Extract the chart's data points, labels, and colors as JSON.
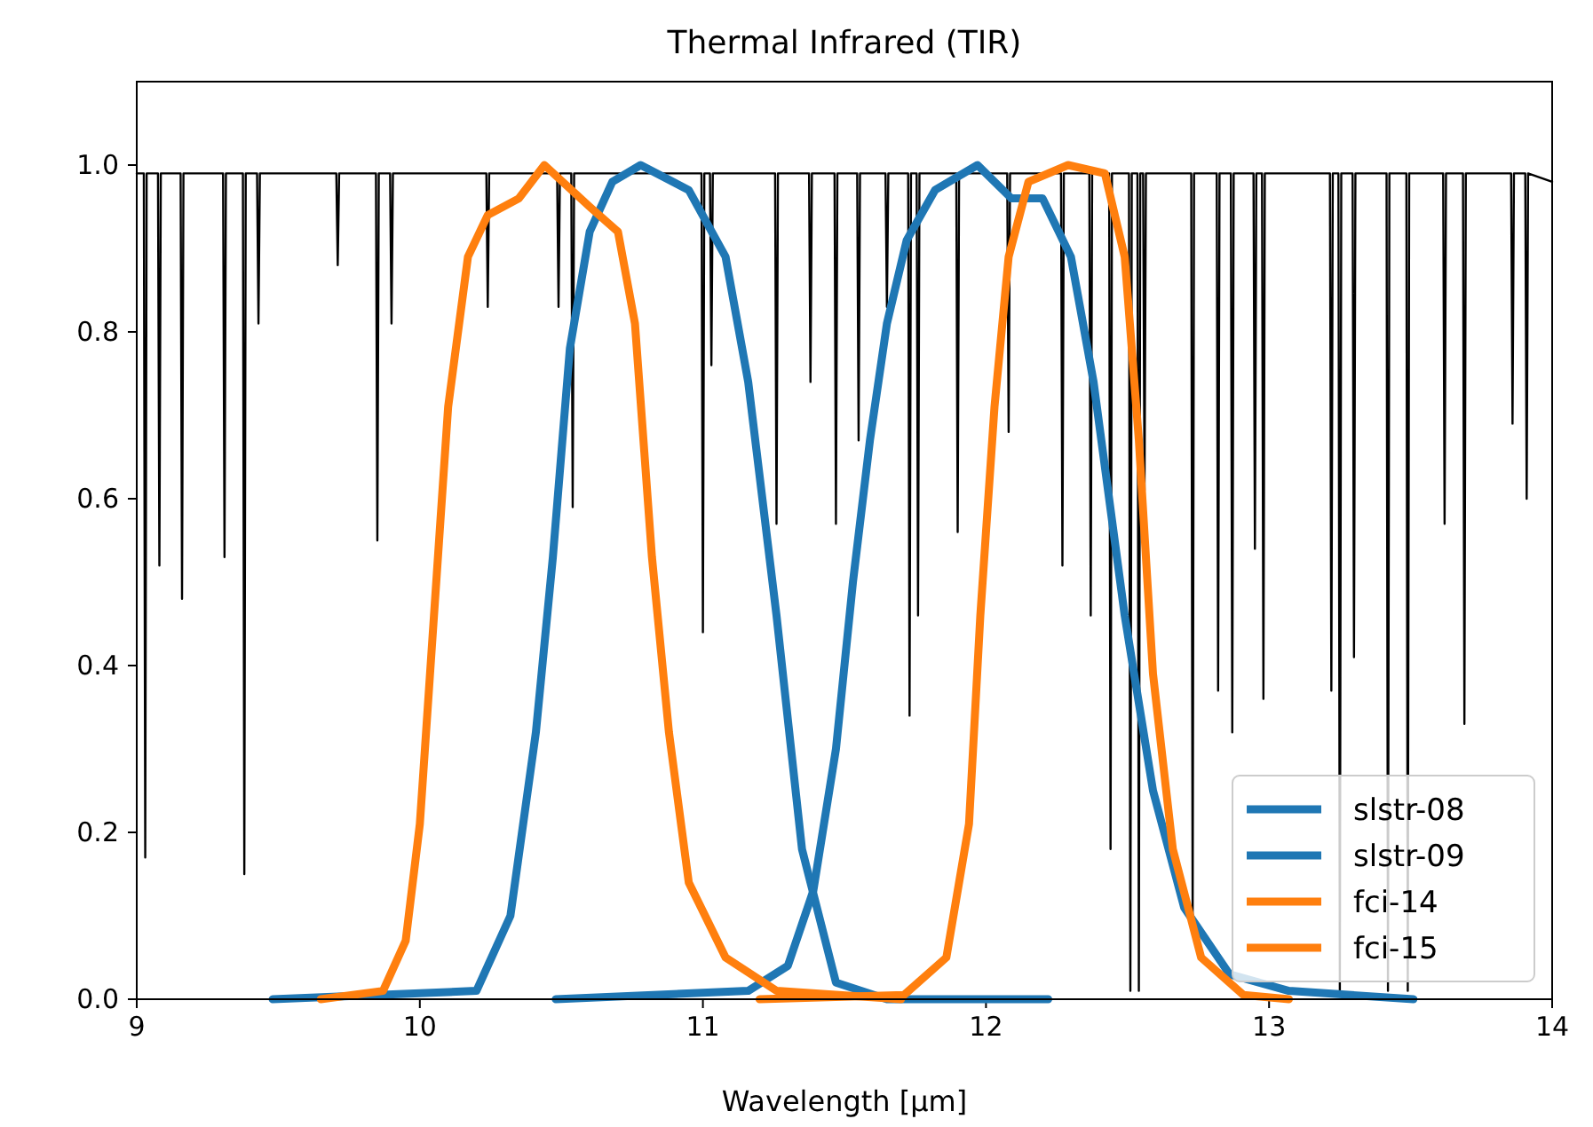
{
  "chart_data": {
    "type": "line",
    "title": "Thermal Infrared (TIR)",
    "xlabel": "Wavelength [µm]",
    "xlim": [
      9,
      14
    ],
    "xticks": [
      9,
      10,
      11,
      12,
      13,
      14
    ],
    "ylim": [
      0,
      1.1
    ],
    "yticks": [
      {
        "value": 0,
        "label": "0.0"
      },
      {
        "value": 0.2,
        "label": "0.2"
      },
      {
        "value": 0.4,
        "label": "0.4"
      },
      {
        "value": 0.6,
        "label": "0.6"
      },
      {
        "value": 0.8,
        "label": "0.8"
      },
      {
        "value": 1.0,
        "label": "1.0"
      }
    ],
    "grid": false,
    "legend": "bottom right",
    "marker": "none",
    "line_style": "solid",
    "series": [
      {
        "color": "#000000",
        "x": [
          9.0,
          9.025,
          9.03,
          9.035,
          9.075,
          9.08,
          9.085,
          9.155,
          9.16,
          9.165,
          9.305,
          9.31,
          9.315,
          9.375,
          9.38,
          9.385,
          9.425,
          9.43,
          9.435,
          9.705,
          9.71,
          9.715,
          9.845,
          9.85,
          9.855,
          9.895,
          9.9,
          9.905,
          10.235,
          10.24,
          10.245,
          10.485,
          10.49,
          10.495,
          10.535,
          10.54,
          10.545,
          10.995,
          11.0,
          11.005,
          11.025,
          11.03,
          11.035,
          11.255,
          11.26,
          11.265,
          11.375,
          11.38,
          11.385,
          11.465,
          11.47,
          11.475,
          11.545,
          11.55,
          11.555,
          11.645,
          11.65,
          11.655,
          11.725,
          11.73,
          11.735,
          11.755,
          11.76,
          11.765,
          11.895,
          11.9,
          11.905,
          12.075,
          12.08,
          12.085,
          12.265,
          12.27,
          12.275,
          12.365,
          12.37,
          12.375,
          12.435,
          12.44,
          12.445,
          12.505,
          12.51,
          12.515,
          12.535,
          12.54,
          12.545,
          12.555,
          12.56,
          12.565,
          12.725,
          12.73,
          12.735,
          12.815,
          12.82,
          12.825,
          12.865,
          12.87,
          12.875,
          12.945,
          12.95,
          12.955,
          12.975,
          12.98,
          12.985,
          13.215,
          13.22,
          13.225,
          13.245,
          13.25,
          13.255,
          13.295,
          13.3,
          13.305,
          13.415,
          13.42,
          13.425,
          13.485,
          13.49,
          13.495,
          13.615,
          13.62,
          13.625,
          13.685,
          13.69,
          13.695,
          13.855,
          13.86,
          13.865,
          13.905,
          13.91,
          13.915,
          14.0
        ],
        "values": [
          0.99,
          0.99,
          0.17,
          0.99,
          0.99,
          0.52,
          0.99,
          0.99,
          0.48,
          0.99,
          0.99,
          0.53,
          0.99,
          0.99,
          0.15,
          0.99,
          0.99,
          0.81,
          0.99,
          0.99,
          0.88,
          0.99,
          0.99,
          0.55,
          0.99,
          0.99,
          0.81,
          0.99,
          0.99,
          0.83,
          0.99,
          0.99,
          0.83,
          0.99,
          0.99,
          0.59,
          0.99,
          0.99,
          0.44,
          0.99,
          0.99,
          0.76,
          0.99,
          0.99,
          0.57,
          0.99,
          0.99,
          0.74,
          0.99,
          0.99,
          0.57,
          0.99,
          0.99,
          0.67,
          0.99,
          0.99,
          0.83,
          0.99,
          0.99,
          0.34,
          0.99,
          0.99,
          0.46,
          0.99,
          0.99,
          0.56,
          0.99,
          0.99,
          0.68,
          0.99,
          0.99,
          0.52,
          0.99,
          0.99,
          0.46,
          0.99,
          0.99,
          0.18,
          0.99,
          0.99,
          0.01,
          0.99,
          0.99,
          0.01,
          0.99,
          0.99,
          0.61,
          0.99,
          0.99,
          0.09,
          0.99,
          0.99,
          0.37,
          0.99,
          0.99,
          0.32,
          0.99,
          0.99,
          0.54,
          0.99,
          0.99,
          0.36,
          0.99,
          0.99,
          0.37,
          0.99,
          0.99,
          0.01,
          0.99,
          0.99,
          0.41,
          0.99,
          0.99,
          0.01,
          0.99,
          0.99,
          0.01,
          0.99,
          0.99,
          0.57,
          0.99,
          0.99,
          0.33,
          0.99,
          0.99,
          0.69,
          0.99,
          0.99,
          0.6,
          0.99,
          0.98
        ]
      },
      {
        "name": "slstr-08",
        "color": "#1f77b4",
        "x": [
          9.48,
          10.2,
          10.32,
          10.41,
          10.47,
          10.53,
          10.6,
          10.68,
          10.78,
          10.95,
          11.08,
          11.16,
          11.26,
          11.35,
          11.47,
          11.65,
          12.22
        ],
        "values": [
          0,
          0.01,
          0.1,
          0.32,
          0.53,
          0.78,
          0.92,
          0.98,
          1.0,
          0.97,
          0.89,
          0.74,
          0.46,
          0.18,
          0.02,
          0,
          0
        ]
      },
      {
        "name": "slstr-09",
        "color": "#1f77b4",
        "x": [
          10.48,
          11.16,
          11.3,
          11.39,
          11.47,
          11.53,
          11.59,
          11.65,
          11.72,
          11.82,
          11.97,
          12.09,
          12.2,
          12.3,
          12.38,
          12.49,
          12.59,
          12.7,
          12.86,
          13.07,
          13.51
        ],
        "values": [
          0,
          0.01,
          0.04,
          0.13,
          0.3,
          0.5,
          0.67,
          0.81,
          0.91,
          0.97,
          1.0,
          0.96,
          0.96,
          0.89,
          0.74,
          0.46,
          0.25,
          0.11,
          0.03,
          0.01,
          0
        ]
      },
      {
        "name": "fci-14",
        "color": "#ff7f0e",
        "x": [
          9.65,
          9.87,
          9.95,
          10.0,
          10.05,
          10.1,
          10.17,
          10.24,
          10.35,
          10.44,
          10.6,
          10.7,
          10.76,
          10.82,
          10.88,
          10.95,
          11.08,
          11.26,
          11.7
        ],
        "values": [
          0,
          0.01,
          0.07,
          0.21,
          0.46,
          0.71,
          0.89,
          0.94,
          0.96,
          1.0,
          0.95,
          0.92,
          0.81,
          0.53,
          0.32,
          0.14,
          0.05,
          0.01,
          0
        ]
      },
      {
        "name": "fci-15",
        "color": "#ff7f0e",
        "x": [
          11.2,
          11.71,
          11.86,
          11.94,
          11.98,
          12.03,
          12.08,
          12.15,
          12.29,
          12.42,
          12.49,
          12.54,
          12.59,
          12.66,
          12.76,
          12.91,
          13.07
        ],
        "values": [
          0,
          0.005,
          0.05,
          0.21,
          0.46,
          0.71,
          0.89,
          0.98,
          1.0,
          0.99,
          0.89,
          0.67,
          0.39,
          0.18,
          0.05,
          0.005,
          0
        ]
      }
    ]
  }
}
